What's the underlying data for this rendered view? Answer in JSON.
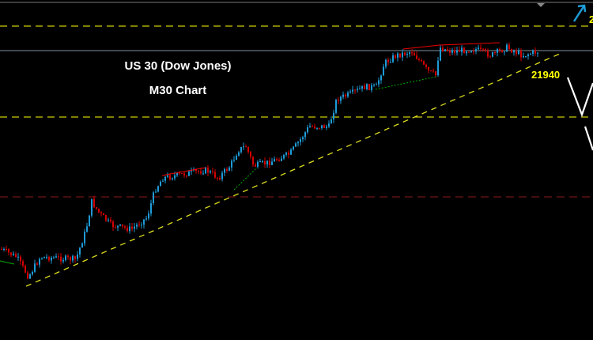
{
  "chart_data": {
    "type": "candlestick",
    "title": "US 30 (Dow Jones)",
    "subtitle": "M30 Chart",
    "annotations": [
      {
        "label": "21940",
        "kind": "trendline-support-level"
      },
      {
        "label": "2",
        "kind": "resistance-level-partial"
      }
    ],
    "trend": "up",
    "grid": false,
    "colors": {
      "background": "#000000",
      "bull_candle": "#1e9bd7",
      "bear_candle": "#d40000",
      "level_lines": "#cccc00",
      "trendline": "#e0e020",
      "support_dashed": "#8b1a1a",
      "arrow": "#1e9bd7",
      "projection": "#ffffff"
    }
  }
}
